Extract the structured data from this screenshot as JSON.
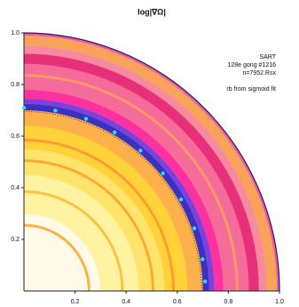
{
  "chart_data": {
    "type": "scatter",
    "title": "log|∇Ω|",
    "annotations": [
      "SART",
      "128e gong #1216",
      "n=7952.Rsx"
    ],
    "series": [
      {
        "name": "rb from sigmoid fit",
        "color": "#33dde6",
        "x": [
          0,
          0.123,
          0.243,
          0.355,
          0.456,
          0.544,
          0.615,
          0.667,
          0.699,
          0.709
        ],
        "values": [
          0.71,
          0.699,
          0.667,
          0.615,
          0.544,
          0.456,
          0.355,
          0.243,
          0.123,
          0.037
        ]
      }
    ],
    "xlim": [
      0,
      1
    ],
    "ylim": [
      0,
      1
    ],
    "xticks": [
      0.2,
      0.4,
      0.6,
      0.8,
      {
        "value": 1,
        "label": "1.0"
      }
    ],
    "yticks": [
      0.2,
      0.4,
      0.6,
      0.8,
      {
        "value": 1,
        "label": "1.0"
      }
    ]
  }
}
